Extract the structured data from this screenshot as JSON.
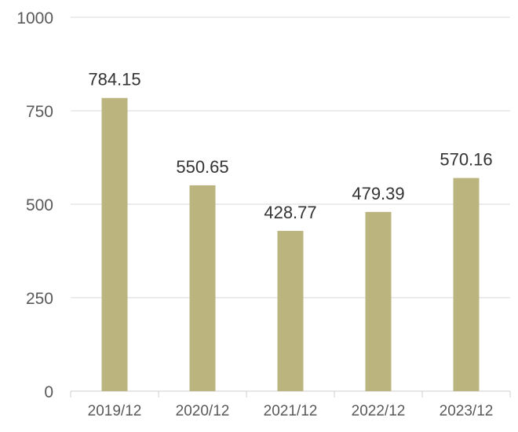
{
  "chart_data": {
    "type": "bar",
    "categories": [
      "2019/12",
      "2020/12",
      "2021/12",
      "2022/12",
      "2023/12"
    ],
    "values": [
      784.15,
      550.65,
      428.77,
      479.39,
      570.16
    ],
    "data_labels": [
      "784.15",
      "550.65",
      "428.77",
      "479.39",
      "570.16"
    ],
    "y_ticks": [
      0,
      250,
      500,
      750,
      1000
    ],
    "y_tick_labels": [
      "0",
      "250",
      "500",
      "750",
      "1000"
    ],
    "ylim": [
      0,
      1000
    ],
    "grid": true,
    "legend": "none",
    "title": "",
    "xlabel": "",
    "ylabel": "",
    "colors": {
      "bar": "#bcb47e"
    }
  }
}
